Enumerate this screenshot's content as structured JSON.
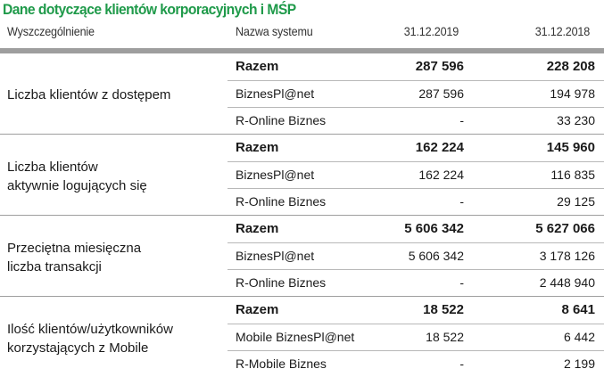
{
  "title": "Dane dotyczące klientów korporacyjnych i MŚP",
  "columns": {
    "description": "Wyszczególnienie",
    "system": "Nazwa systemu",
    "date1": "31.12.2019",
    "date2": "31.12.2018"
  },
  "groups": [
    {
      "label": "Liczba klientów z dostępem",
      "rows": [
        {
          "name": "Razem",
          "v2019": "287 596",
          "v2018": "228 208",
          "total": true
        },
        {
          "name": "BiznesPl@net",
          "v2019": "287 596",
          "v2018": "194 978"
        },
        {
          "name": "R-Online Biznes",
          "v2019": "-",
          "v2018": "33 230"
        }
      ]
    },
    {
      "label": "Liczba klientów\naktywnie logujących się",
      "rows": [
        {
          "name": "Razem",
          "v2019": "162 224",
          "v2018": "145 960",
          "total": true
        },
        {
          "name": "BiznesPl@net",
          "v2019": "162 224",
          "v2018": "116 835"
        },
        {
          "name": "R-Online Biznes",
          "v2019": "-",
          "v2018": "29 125"
        }
      ]
    },
    {
      "label": "Przeciętna miesięczna\nliczba transakcji",
      "rows": [
        {
          "name": "Razem",
          "v2019": "5 606 342",
          "v2018": "5 627 066",
          "total": true
        },
        {
          "name": "BiznesPl@net",
          "v2019": "5 606 342",
          "v2018": "3 178 126"
        },
        {
          "name": "R-Online Biznes",
          "v2019": "-",
          "v2018": "2 448 940"
        }
      ]
    },
    {
      "label": "Ilość klientów/użytkowników\nkorzystających z Mobile",
      "rows": [
        {
          "name": "Razem",
          "v2019": "18 522",
          "v2018": "8 641",
          "total": true
        },
        {
          "name": "Mobile BiznesPl@net",
          "v2019": "18 522",
          "v2018": "6 442"
        },
        {
          "name": "R-Mobile Biznes",
          "v2019": "-",
          "v2018": "2 199"
        }
      ]
    }
  ]
}
